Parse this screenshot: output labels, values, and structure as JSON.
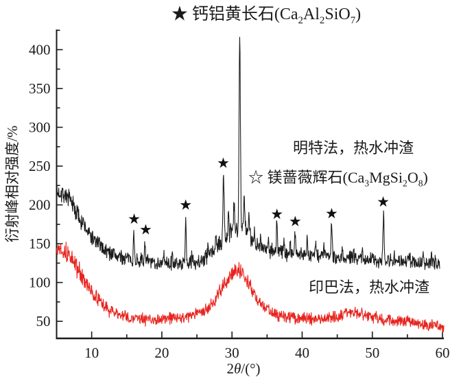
{
  "chart_data": {
    "type": "line",
    "title": "★钙铝黄长石(Ca₂Al₂SiO₇)",
    "xlabel": "2θ/(°)",
    "ylabel": "衍射峰相对强度/%",
    "xlim": [
      5,
      60
    ],
    "ylim": [
      28,
      426
    ],
    "x_major_ticks": [
      10,
      20,
      30,
      40,
      50,
      60
    ],
    "x_minor_ticks": [
      15,
      25,
      35,
      45,
      55
    ],
    "y_major_ticks": [
      50,
      100,
      150,
      200,
      250,
      300,
      350,
      400
    ],
    "y_minor_ticks": [
      75,
      125,
      175,
      225,
      275,
      325,
      375,
      425
    ],
    "grid": false,
    "legend_position": "inline-annotations",
    "legend_entries": [
      {
        "symbol": "★",
        "label": "钙铝黄长石(Ca₂Al₂SiO₇)"
      },
      {
        "symbol": "☆",
        "label": "镁蔷薇辉石(Ca₃MgSi₂O₈)"
      }
    ],
    "series": [
      {
        "id": "yinba",
        "name": "印巴法，热水冲渣",
        "color": "#e8231d",
        "seed": 13,
        "x_range": [
          5,
          60.2
        ],
        "noise_profile": [
          [
            9,
            11
          ],
          [
            14,
            8
          ],
          [
            26,
            7
          ],
          [
            33,
            9
          ],
          [
            46,
            7
          ],
          [
            61,
            7
          ]
        ],
        "baseline": [
          [
            5,
            143
          ],
          [
            5.5,
            146
          ],
          [
            6,
            142
          ],
          [
            6.5,
            138
          ],
          [
            7,
            132
          ],
          [
            7.5,
            125
          ],
          [
            8,
            117
          ],
          [
            8.5,
            109
          ],
          [
            9,
            101
          ],
          [
            9.5,
            94
          ],
          [
            10,
            88
          ],
          [
            10.5,
            82
          ],
          [
            11,
            77
          ],
          [
            11.5,
            72
          ],
          [
            12,
            68
          ],
          [
            12.5,
            65
          ],
          [
            13,
            62
          ],
          [
            13.5,
            60
          ],
          [
            14,
            58
          ],
          [
            15,
            56
          ],
          [
            16,
            54
          ],
          [
            17,
            53
          ],
          [
            18,
            52
          ],
          [
            19,
            52
          ],
          [
            20,
            52
          ],
          [
            21,
            53
          ],
          [
            22,
            54
          ],
          [
            23,
            55
          ],
          [
            24,
            57
          ],
          [
            25,
            59
          ],
          [
            26,
            63
          ],
          [
            26.5,
            66
          ],
          [
            27,
            70
          ],
          [
            27.5,
            76
          ],
          [
            28,
            83
          ],
          [
            28.5,
            91
          ],
          [
            29,
            99
          ],
          [
            29.5,
            106
          ],
          [
            30,
            112
          ],
          [
            30.3,
            115
          ],
          [
            30.7,
            116
          ],
          [
            31,
            115
          ],
          [
            31.5,
            111
          ],
          [
            32,
            104
          ],
          [
            32.5,
            96
          ],
          [
            33,
            88
          ],
          [
            33.5,
            81
          ],
          [
            34,
            75
          ],
          [
            34.5,
            70
          ],
          [
            35,
            66
          ],
          [
            35.5,
            63
          ],
          [
            36,
            60
          ],
          [
            37,
            57
          ],
          [
            38,
            55
          ],
          [
            39,
            54
          ],
          [
            40,
            54
          ],
          [
            41,
            53
          ],
          [
            42,
            53
          ],
          [
            43,
            54
          ],
          [
            44,
            55
          ],
          [
            45,
            57
          ],
          [
            46,
            59
          ],
          [
            46.5,
            61
          ],
          [
            47,
            62
          ],
          [
            47.5,
            62
          ],
          [
            48,
            60
          ],
          [
            49,
            57
          ],
          [
            50,
            55
          ],
          [
            51,
            53
          ],
          [
            52,
            51
          ],
          [
            53,
            50
          ],
          [
            54,
            50
          ],
          [
            55,
            49
          ],
          [
            56,
            48
          ],
          [
            57,
            47
          ],
          [
            58,
            45
          ],
          [
            59,
            44
          ],
          [
            60.2,
            42
          ]
        ],
        "peaks": []
      },
      {
        "id": "mingte",
        "name": "明特法，热水冲渣",
        "color": "#1c1c1c",
        "seed": 7,
        "x_range": [
          5,
          59.6
        ],
        "noise_profile": [
          [
            9,
            12
          ],
          [
            15,
            9
          ],
          [
            25,
            8
          ],
          [
            30,
            10
          ],
          [
            33,
            11
          ],
          [
            40,
            9
          ],
          [
            60,
            8
          ]
        ],
        "baseline": [
          [
            5,
            212
          ],
          [
            5.5,
            218
          ],
          [
            6,
            215
          ],
          [
            6.5,
            210
          ],
          [
            7,
            203
          ],
          [
            7.5,
            196
          ],
          [
            8,
            188
          ],
          [
            9,
            172
          ],
          [
            10,
            158
          ],
          [
            11,
            149
          ],
          [
            12,
            142
          ],
          [
            13,
            137
          ],
          [
            14,
            133
          ],
          [
            15,
            131
          ],
          [
            16,
            129
          ],
          [
            17,
            128
          ],
          [
            18,
            127
          ],
          [
            19,
            126
          ],
          [
            20,
            125
          ],
          [
            21,
            124
          ],
          [
            22,
            124
          ],
          [
            23,
            124
          ],
          [
            24,
            125
          ],
          [
            25,
            127
          ],
          [
            26,
            131
          ],
          [
            27,
            137
          ],
          [
            27.5,
            141
          ],
          [
            28,
            146
          ],
          [
            28.5,
            151
          ],
          [
            29,
            156
          ],
          [
            29.5,
            161
          ],
          [
            30,
            166
          ],
          [
            30.5,
            170
          ],
          [
            31,
            172
          ],
          [
            31.5,
            171
          ],
          [
            32,
            166
          ],
          [
            32.5,
            159
          ],
          [
            33,
            153
          ],
          [
            33.5,
            149
          ],
          [
            34,
            146
          ],
          [
            35,
            143
          ],
          [
            36,
            141
          ],
          [
            37,
            140
          ],
          [
            38,
            138
          ],
          [
            39,
            137
          ],
          [
            40,
            137
          ],
          [
            41,
            136
          ],
          [
            42,
            135
          ],
          [
            43,
            135
          ],
          [
            44,
            134
          ],
          [
            45,
            133
          ],
          [
            46,
            132
          ],
          [
            47,
            132
          ],
          [
            48,
            131
          ],
          [
            49,
            130
          ],
          [
            50,
            130
          ],
          [
            51,
            129
          ],
          [
            52,
            129
          ],
          [
            53,
            128
          ],
          [
            54,
            127
          ],
          [
            55,
            127
          ],
          [
            56,
            126
          ],
          [
            57,
            126
          ],
          [
            58,
            125
          ],
          [
            59,
            125
          ],
          [
            59.6,
            124
          ]
        ],
        "peaks": [
          [
            16.0,
            35,
            0.1
          ],
          [
            17.6,
            26,
            0.1
          ],
          [
            20.3,
            12,
            0.08
          ],
          [
            21.5,
            10,
            0.08
          ],
          [
            23.4,
            57,
            0.11
          ],
          [
            24.3,
            12,
            0.08
          ],
          [
            26.6,
            14,
            0.08
          ],
          [
            27.7,
            20,
            0.09
          ],
          [
            28.8,
            88,
            0.12
          ],
          [
            29.5,
            28,
            0.09
          ],
          [
            30.3,
            34,
            0.09
          ],
          [
            31.1,
            252,
            0.13
          ],
          [
            31.75,
            45,
            0.1
          ],
          [
            32.4,
            28,
            0.09
          ],
          [
            33.2,
            20,
            0.08
          ],
          [
            34.1,
            16,
            0.08
          ],
          [
            35.2,
            12,
            0.08
          ],
          [
            36.4,
            38,
            0.1
          ],
          [
            37.4,
            22,
            0.09
          ],
          [
            38.3,
            14,
            0.08
          ],
          [
            39.0,
            32,
            0.1
          ],
          [
            40.7,
            24,
            0.09
          ],
          [
            41.9,
            18,
            0.09
          ],
          [
            43.1,
            12,
            0.08
          ],
          [
            44.2,
            45,
            0.11
          ],
          [
            45.7,
            12,
            0.08
          ],
          [
            47.3,
            10,
            0.08
          ],
          [
            48.6,
            14,
            0.08
          ],
          [
            50.0,
            10,
            0.08
          ],
          [
            51.6,
            60,
            0.12
          ],
          [
            53.1,
            12,
            0.08
          ],
          [
            55.3,
            10,
            0.08
          ],
          [
            57.2,
            10,
            0.08
          ],
          [
            58.4,
            8,
            0.08
          ]
        ]
      }
    ],
    "markers": {
      "symbol": "★",
      "color": "#111111",
      "positions": [
        [
          16.05,
          182
        ],
        [
          17.7,
          168
        ],
        [
          23.4,
          200
        ],
        [
          28.75,
          254
        ],
        [
          36.4,
          188
        ],
        [
          39.0,
          179
        ],
        [
          44.2,
          189
        ],
        [
          51.55,
          204
        ]
      ]
    }
  },
  "texts": {
    "title_parts": [
      {
        "text": "★ 钙铝黄长石(Ca"
      },
      {
        "text": "2",
        "sub": true
      },
      {
        "text": "Al"
      },
      {
        "text": "2",
        "sub": true
      },
      {
        "text": "SiO"
      },
      {
        "text": "7",
        "sub": true
      },
      {
        "text": ")"
      }
    ],
    "legend_merwinite_parts": [
      {
        "text": "☆ 镁蔷薇辉石(Ca"
      },
      {
        "text": "3",
        "sub": true
      },
      {
        "text": "MgSi"
      },
      {
        "text": "2",
        "sub": true
      },
      {
        "text": "O"
      },
      {
        "text": "8",
        "sub": true
      },
      {
        "text": ")"
      }
    ],
    "xlabel_parts": [
      {
        "text": "2"
      },
      {
        "text": "θ",
        "italic": true
      },
      {
        "text": "/(°)"
      }
    ],
    "ylabel": "衍射峰相对强度/%",
    "label_mingte": "明特法，热水冲渣",
    "label_yinba": "印巴法，热水冲渣"
  }
}
